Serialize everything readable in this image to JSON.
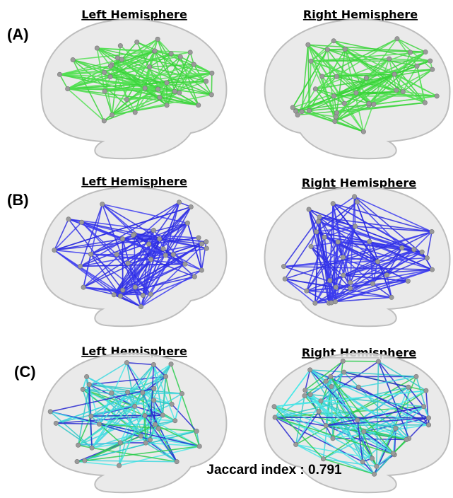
{
  "panels": [
    {
      "label": "(A)",
      "left": "Left Hemisphere",
      "right": "Right Hemisphere"
    },
    {
      "label": "(B)",
      "left": "Left Hemisphere",
      "right": "Right Hemisphere"
    },
    {
      "label": "(C)",
      "left": "Left Hemisphere",
      "right": "Right Hemisphere"
    }
  ],
  "footer": "Jaccard index : 0.791"
}
